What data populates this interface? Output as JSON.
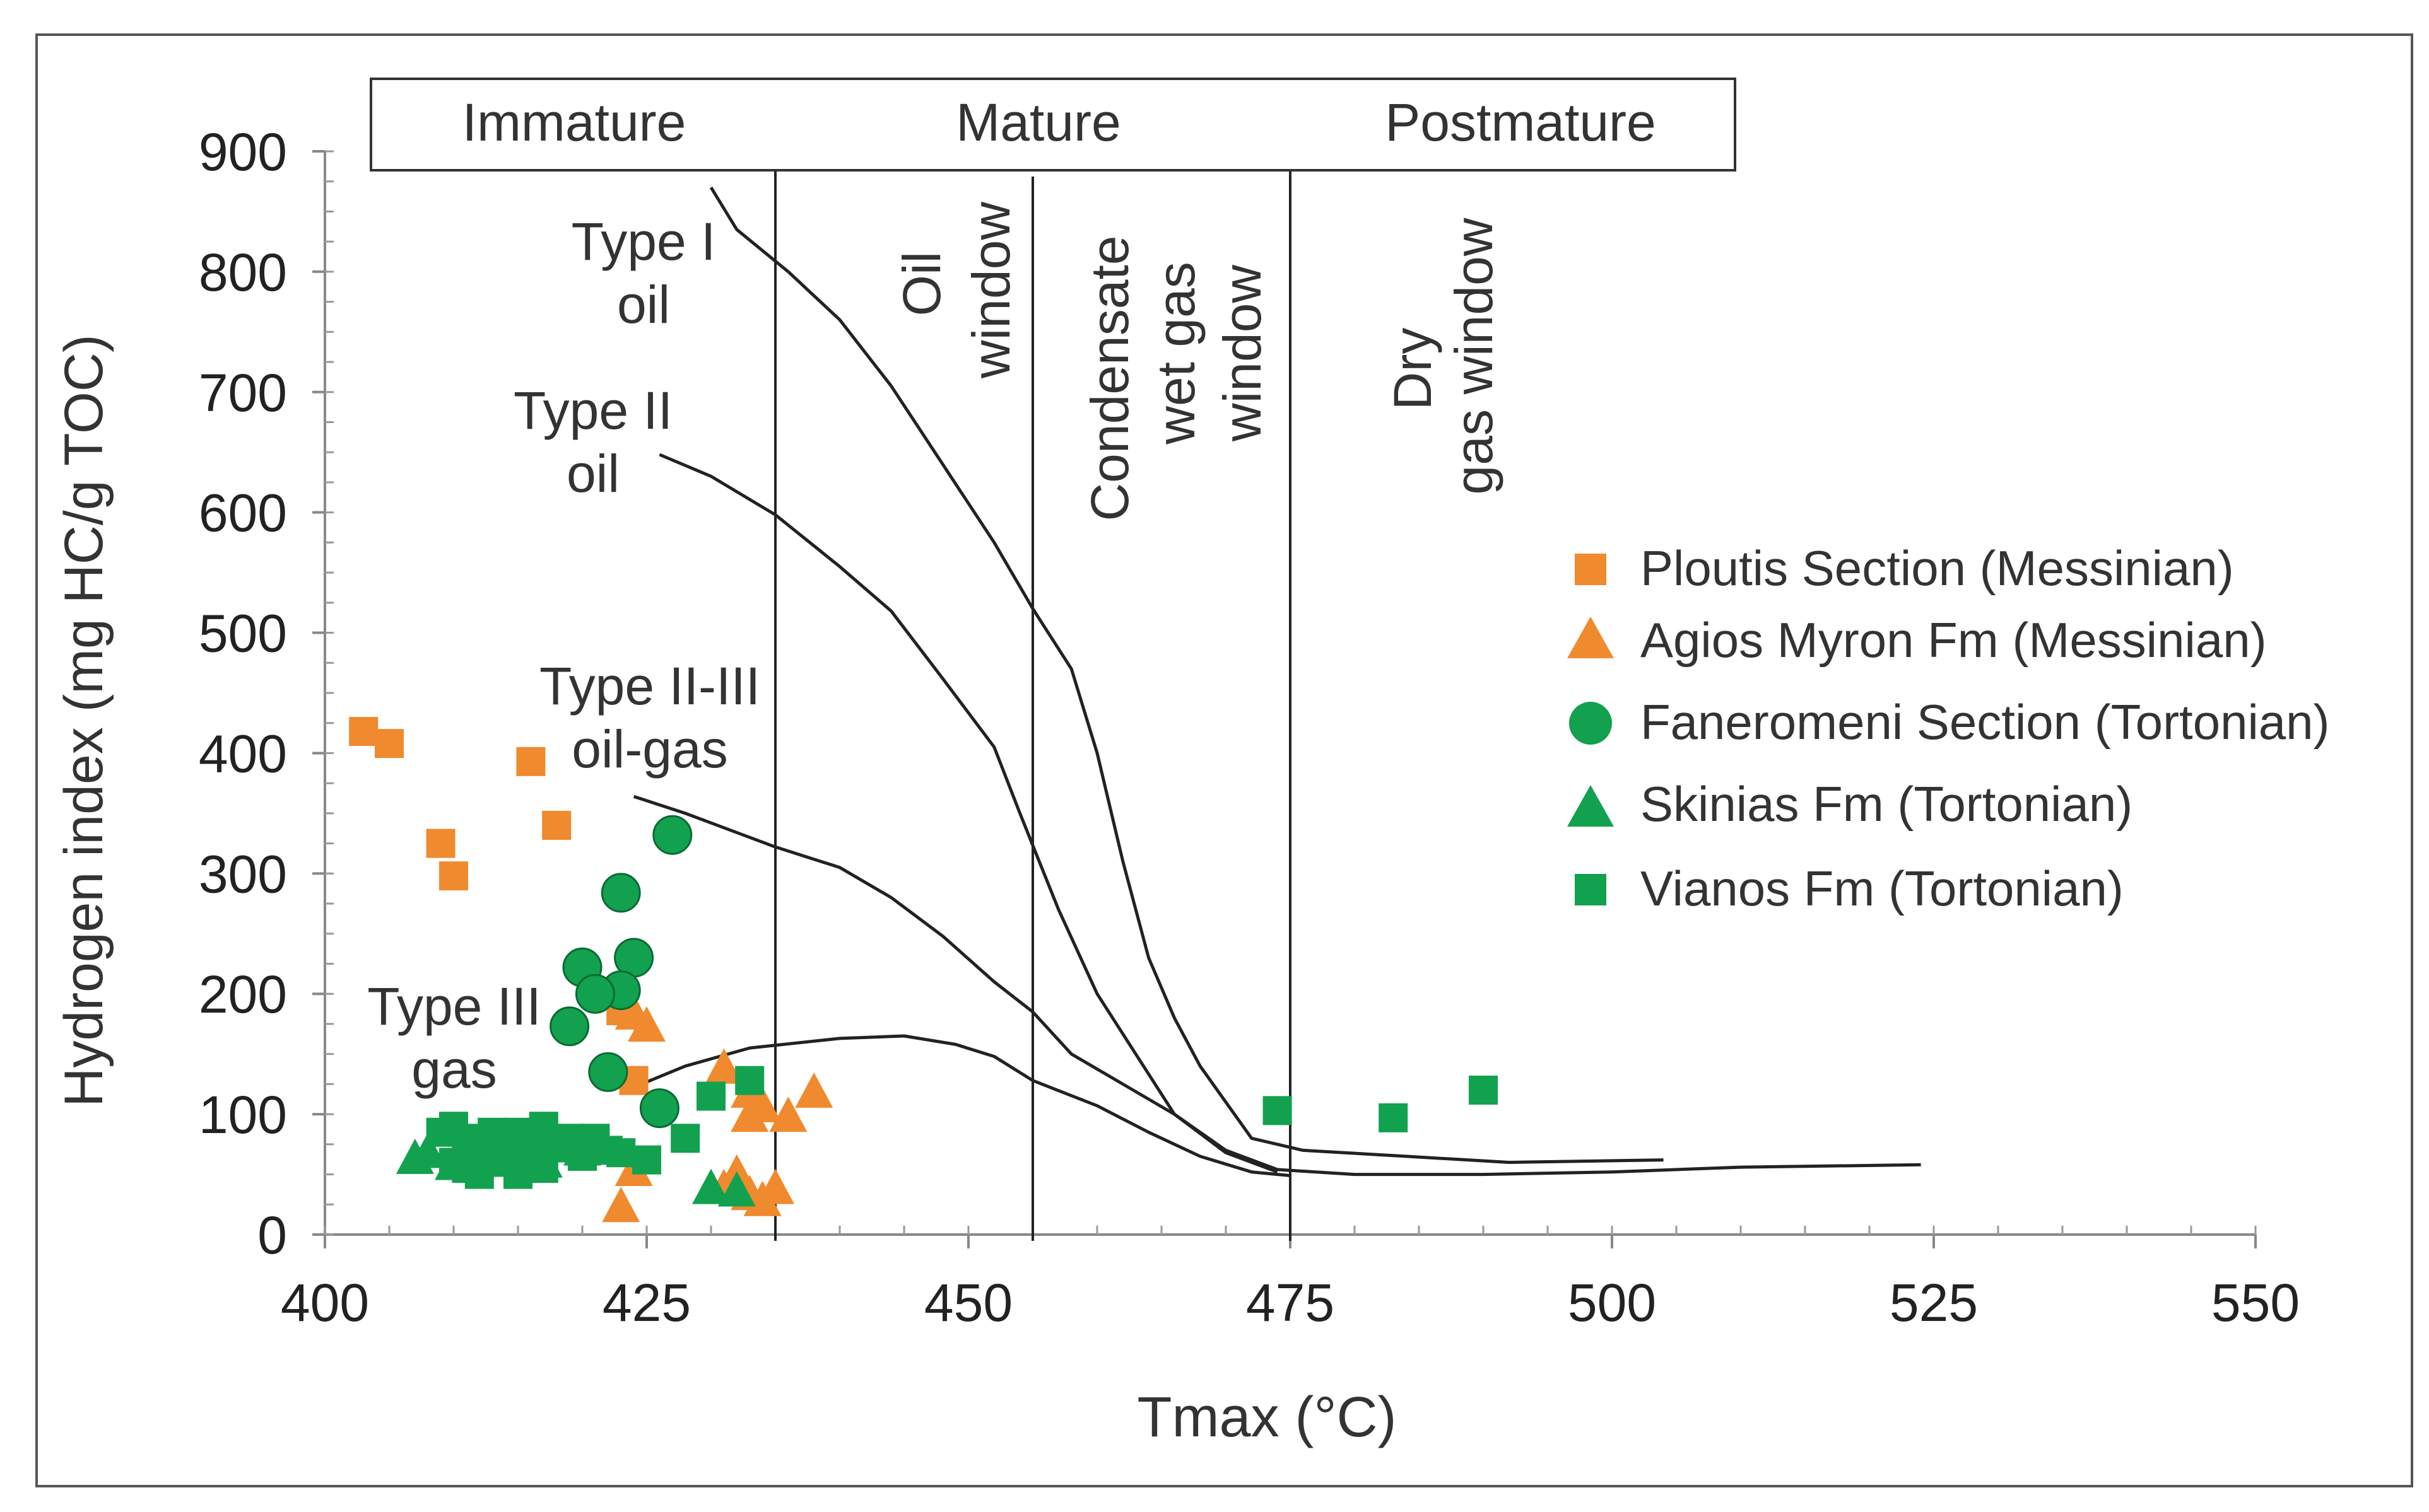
{
  "colors": {
    "orange": "#F08A2E",
    "green": "#12A14F",
    "line": "#222222",
    "text": "#333333"
  },
  "zones": {
    "immature": "Immature",
    "mature": "Mature",
    "postmature": "Postmature"
  },
  "windows": {
    "oil": [
      "Oil",
      "window"
    ],
    "condensate": [
      "Condensate",
      "wet gas",
      "window"
    ],
    "dry": [
      "Dry",
      "gas window"
    ]
  },
  "curve_labels": {
    "type1": [
      "Type I",
      "oil"
    ],
    "type2": [
      "Type II",
      "oil"
    ],
    "type23": [
      "Type II-III",
      "oil-gas"
    ],
    "type3": [
      "Type III",
      "gas"
    ]
  },
  "chart_data": {
    "type": "scatter",
    "title": "",
    "xlabel": "Tmax (°C)",
    "ylabel": "Hydrogen index (mg HC/g TOC)",
    "xlim": [
      400,
      550
    ],
    "ylim": [
      0,
      900
    ],
    "x_ticks": [
      "400",
      "425",
      "450",
      "475",
      "500",
      "525",
      "550"
    ],
    "y_ticks": [
      "0",
      "100",
      "200",
      "300",
      "400",
      "500",
      "600",
      "700",
      "800",
      "900"
    ],
    "zone_boundaries": [
      435,
      475
    ],
    "window_boundaries": [
      455,
      475
    ],
    "legend_position": "right",
    "curves": [
      {
        "name": "Type I oil",
        "points": [
          [
            430,
            870
          ],
          [
            432,
            835
          ],
          [
            436,
            800
          ],
          [
            440,
            760
          ],
          [
            444,
            705
          ],
          [
            448,
            640
          ],
          [
            452,
            575
          ],
          [
            455,
            520
          ],
          [
            458,
            470
          ],
          [
            460,
            400
          ],
          [
            462,
            310
          ],
          [
            464,
            230
          ],
          [
            466,
            180
          ],
          [
            468,
            140
          ],
          [
            472,
            80
          ],
          [
            476,
            70
          ],
          [
            484,
            65
          ],
          [
            492,
            60
          ],
          [
            504,
            62
          ]
        ]
      },
      {
        "name": "Type II oil",
        "points": [
          [
            426,
            648
          ],
          [
            430,
            630
          ],
          [
            435,
            598
          ],
          [
            440,
            555
          ],
          [
            444,
            518
          ],
          [
            448,
            462
          ],
          [
            452,
            405
          ],
          [
            454,
            350
          ],
          [
            457,
            270
          ],
          [
            460,
            200
          ],
          [
            463,
            150
          ],
          [
            466,
            100
          ],
          [
            470,
            68
          ],
          [
            474,
            52
          ]
        ]
      },
      {
        "name": "Type II-III oil-gas",
        "points": [
          [
            424,
            364
          ],
          [
            428,
            350
          ],
          [
            435,
            322
          ],
          [
            440,
            305
          ],
          [
            444,
            280
          ],
          [
            448,
            248
          ],
          [
            452,
            210
          ],
          [
            455,
            185
          ],
          [
            458,
            150
          ],
          [
            462,
            125
          ],
          [
            466,
            100
          ],
          [
            470,
            70
          ],
          [
            474,
            54
          ],
          [
            480,
            50
          ],
          [
            490,
            50
          ],
          [
            500,
            52
          ],
          [
            510,
            56
          ],
          [
            524,
            58
          ]
        ]
      },
      {
        "name": "Type III gas",
        "points": [
          [
            423,
            118
          ],
          [
            428,
            140
          ],
          [
            433,
            155
          ],
          [
            440,
            163
          ],
          [
            445,
            165
          ],
          [
            449,
            158
          ],
          [
            452,
            148
          ],
          [
            455,
            128
          ],
          [
            460,
            107
          ],
          [
            464,
            85
          ],
          [
            468,
            65
          ],
          [
            472,
            52
          ],
          [
            475,
            49
          ]
        ]
      }
    ],
    "series": [
      {
        "name": "Ploutis Section (Messinian)",
        "marker": "square",
        "color": "#F08A2E",
        "points": [
          [
            403,
            418
          ],
          [
            405,
            408
          ],
          [
            409,
            325
          ],
          [
            410,
            298
          ],
          [
            416,
            393
          ],
          [
            418,
            340
          ],
          [
            423,
            186
          ],
          [
            424,
            128
          ]
        ]
      },
      {
        "name": "Agios Myron Fm (Messinian)",
        "marker": "triangle",
        "color": "#F08A2E",
        "points": [
          [
            423,
            25
          ],
          [
            424,
            55
          ],
          [
            424,
            185
          ],
          [
            425,
            175
          ],
          [
            431,
            140
          ],
          [
            431,
            40
          ],
          [
            432,
            52
          ],
          [
            433,
            35
          ],
          [
            433,
            120
          ],
          [
            433,
            100
          ],
          [
            434,
            108
          ],
          [
            435,
            40
          ],
          [
            436,
            100
          ],
          [
            438,
            120
          ],
          [
            434,
            30
          ]
        ]
      },
      {
        "name": "Faneromeni Section (Tortonian)",
        "marker": "circle",
        "color": "#12A14F",
        "points": [
          [
            427,
            332
          ],
          [
            423,
            284
          ],
          [
            424,
            230
          ],
          [
            420,
            222
          ],
          [
            423,
            203
          ],
          [
            421,
            200
          ],
          [
            419,
            173
          ],
          [
            422,
            135
          ],
          [
            426,
            105
          ]
        ]
      },
      {
        "name": "Skinias Fm (Tortonian)",
        "marker": "triangle",
        "color": "#12A14F",
        "points": [
          [
            407,
            65
          ],
          [
            408,
            70
          ],
          [
            410,
            60
          ],
          [
            412,
            72
          ],
          [
            414,
            65
          ],
          [
            417,
            62
          ],
          [
            420,
            72
          ],
          [
            430,
            40
          ],
          [
            432,
            38
          ]
        ]
      },
      {
        "name": "Vianos Fm (Tortonian)",
        "marker": "square",
        "color": "#12A14F",
        "points": [
          [
            409,
            85
          ],
          [
            410,
            90
          ],
          [
            410,
            60
          ],
          [
            411,
            75
          ],
          [
            411,
            55
          ],
          [
            412,
            80
          ],
          [
            412,
            50
          ],
          [
            413,
            70
          ],
          [
            413,
            85
          ],
          [
            414,
            60
          ],
          [
            414,
            75
          ],
          [
            415,
            50
          ],
          [
            415,
            85
          ],
          [
            416,
            65
          ],
          [
            416,
            80
          ],
          [
            417,
            90
          ],
          [
            417,
            55
          ],
          [
            418,
            72
          ],
          [
            419,
            80
          ],
          [
            420,
            65
          ],
          [
            421,
            80
          ],
          [
            422,
            70
          ],
          [
            423,
            68
          ],
          [
            425,
            62
          ],
          [
            428,
            80
          ],
          [
            430,
            115
          ],
          [
            433,
            128
          ],
          [
            474,
            103
          ],
          [
            483,
            97
          ],
          [
            490,
            120
          ]
        ]
      }
    ]
  }
}
